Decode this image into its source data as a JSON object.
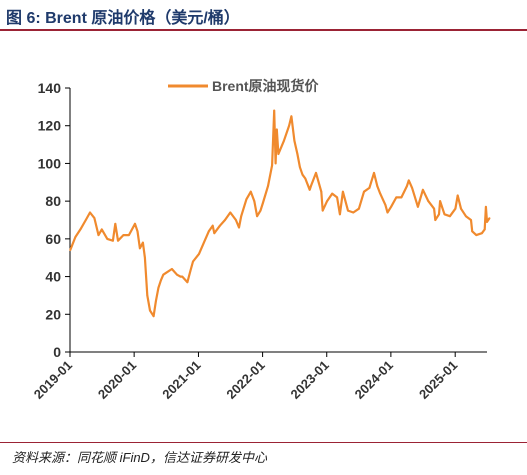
{
  "header": {
    "title": "图 6:  Brent 原油价格（美元/桶）"
  },
  "footer": {
    "source": "资料来源：同花顺 iFinD，信达证券研发中心"
  },
  "colors": {
    "series": "#f08a2e",
    "title": "#1f3a6b",
    "rule": "#9b2335"
  },
  "chart_data": {
    "type": "line",
    "title": "",
    "xlabel": "",
    "ylabel": "",
    "ylim": [
      0,
      140
    ],
    "yticks": [
      "0",
      "20",
      "40",
      "60",
      "80",
      "100",
      "120",
      "140"
    ],
    "xlim": [
      "2019-01",
      "2025-07"
    ],
    "xticks": [
      "2019-01",
      "2020-01",
      "2021-01",
      "2022-01",
      "2023-01",
      "2024-01",
      "2025-01"
    ],
    "grid": false,
    "legend": "top-center",
    "series": [
      {
        "name": "Brent原油现货价",
        "x": [
          "2019-01-02",
          "2019-02-01",
          "2019-03-01",
          "2019-04-01",
          "2019-04-25",
          "2019-05-20",
          "2019-06-12",
          "2019-07-01",
          "2019-08-01",
          "2019-09-02",
          "2019-09-16",
          "2019-10-01",
          "2019-11-01",
          "2019-12-02",
          "2020-01-06",
          "2020-01-20",
          "2020-02-03",
          "2020-02-20",
          "2020-03-02",
          "2020-03-16",
          "2020-03-31",
          "2020-04-21",
          "2020-05-04",
          "2020-05-18",
          "2020-06-01",
          "2020-06-15",
          "2020-07-01",
          "2020-08-03",
          "2020-09-01",
          "2020-09-21",
          "2020-10-01",
          "2020-10-30",
          "2020-11-16",
          "2020-12-01",
          "2021-01-04",
          "2021-02-01",
          "2021-03-01",
          "2021-03-23",
          "2021-04-01",
          "2021-05-03",
          "2021-06-01",
          "2021-07-01",
          "2021-08-02",
          "2021-08-20",
          "2021-09-01",
          "2021-10-01",
          "2021-10-26",
          "2021-11-15",
          "2021-12-01",
          "2021-12-20",
          "2022-01-03",
          "2022-02-01",
          "2022-02-24",
          "2022-03-08",
          "2022-03-16",
          "2022-03-23",
          "2022-04-01",
          "2022-05-02",
          "2022-06-01",
          "2022-06-14",
          "2022-07-01",
          "2022-07-18",
          "2022-08-01",
          "2022-08-16",
          "2022-09-01",
          "2022-09-26",
          "2022-10-03",
          "2022-11-01",
          "2022-12-01",
          "2022-12-09",
          "2023-01-03",
          "2023-02-01",
          "2023-03-01",
          "2023-03-17",
          "2023-04-03",
          "2023-05-02",
          "2023-06-01",
          "2023-07-03",
          "2023-08-01",
          "2023-09-01",
          "2023-09-27",
          "2023-10-16",
          "2023-11-01",
          "2023-12-01",
          "2023-12-13",
          "2024-01-02",
          "2024-02-01",
          "2024-03-01",
          "2024-04-01",
          "2024-04-12",
          "2024-05-01",
          "2024-06-03",
          "2024-07-01",
          "2024-08-01",
          "2024-09-03",
          "2024-09-10",
          "2024-10-01",
          "2024-10-07",
          "2024-11-01",
          "2024-12-02",
          "2025-01-02",
          "2025-01-15",
          "2025-02-03",
          "2025-03-03",
          "2025-04-01",
          "2025-04-08",
          "2025-05-01",
          "2025-06-02",
          "2025-06-18",
          "2025-06-25",
          "2025-07-01",
          "2025-07-15"
        ],
        "y": [
          54,
          61,
          65,
          70,
          74,
          71,
          62,
          65,
          60,
          59,
          68,
          59,
          62,
          62,
          68,
          64,
          55,
          58,
          50,
          30,
          22,
          19,
          27,
          34,
          38,
          41,
          42,
          44,
          41,
          40,
          40,
          37,
          43,
          48,
          52,
          58,
          64,
          67,
          63,
          67,
          70,
          74,
          70,
          66,
          72,
          81,
          85,
          80,
          72,
          75,
          79,
          88,
          99,
          128,
          100,
          118,
          105,
          112,
          120,
          125,
          112,
          105,
          98,
          94,
          92,
          86,
          88,
          95,
          85,
          75,
          80,
          84,
          82,
          73,
          85,
          75,
          74,
          76,
          85,
          87,
          95,
          88,
          84,
          78,
          74,
          77,
          82,
          82,
          88,
          91,
          87,
          77,
          86,
          80,
          76,
          70,
          73,
          80,
          73,
          72,
          76,
          83,
          76,
          72,
          70,
          64,
          62,
          63,
          65,
          77,
          69,
          71
        ]
      }
    ]
  }
}
